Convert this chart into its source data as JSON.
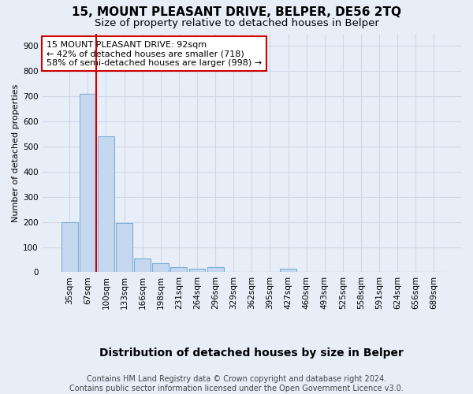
{
  "title": "15, MOUNT PLEASANT DRIVE, BELPER, DE56 2TQ",
  "subtitle": "Size of property relative to detached houses in Belper",
  "xlabel": "Distribution of detached houses by size in Belper",
  "ylabel": "Number of detached properties",
  "footer_line1": "Contains HM Land Registry data © Crown copyright and database right 2024.",
  "footer_line2": "Contains public sector information licensed under the Open Government Licence v3.0.",
  "categories": [
    "35sqm",
    "67sqm",
    "100sqm",
    "133sqm",
    "166sqm",
    "198sqm",
    "231sqm",
    "264sqm",
    "296sqm",
    "329sqm",
    "362sqm",
    "395sqm",
    "427sqm",
    "460sqm",
    "493sqm",
    "525sqm",
    "558sqm",
    "591sqm",
    "624sqm",
    "656sqm",
    "689sqm"
  ],
  "values": [
    200,
    710,
    540,
    195,
    55,
    35,
    20,
    15,
    20,
    0,
    0,
    0,
    15,
    0,
    0,
    0,
    0,
    0,
    0,
    0,
    0
  ],
  "bar_color": "#c5d8f0",
  "bar_edge_color": "#7aafd4",
  "property_index": 1,
  "red_line_color": "#cc0000",
  "annotation_text_line1": "15 MOUNT PLEASANT DRIVE: 92sqm",
  "annotation_text_line2": "← 42% of detached houses are smaller (718)",
  "annotation_text_line3": "58% of semi-detached houses are larger (998) →",
  "annotation_box_color": "#ffffff",
  "annotation_box_edge": "#cc0000",
  "ylim": [
    0,
    950
  ],
  "yticks": [
    0,
    100,
    200,
    300,
    400,
    500,
    600,
    700,
    800,
    900
  ],
  "background_color": "#e8eef8",
  "grid_color": "#d0d8e8",
  "title_fontsize": 11,
  "subtitle_fontsize": 9.5,
  "xlabel_fontsize": 10,
  "ylabel_fontsize": 8,
  "tick_fontsize": 7.5,
  "footer_fontsize": 7,
  "ann_fontsize": 8
}
